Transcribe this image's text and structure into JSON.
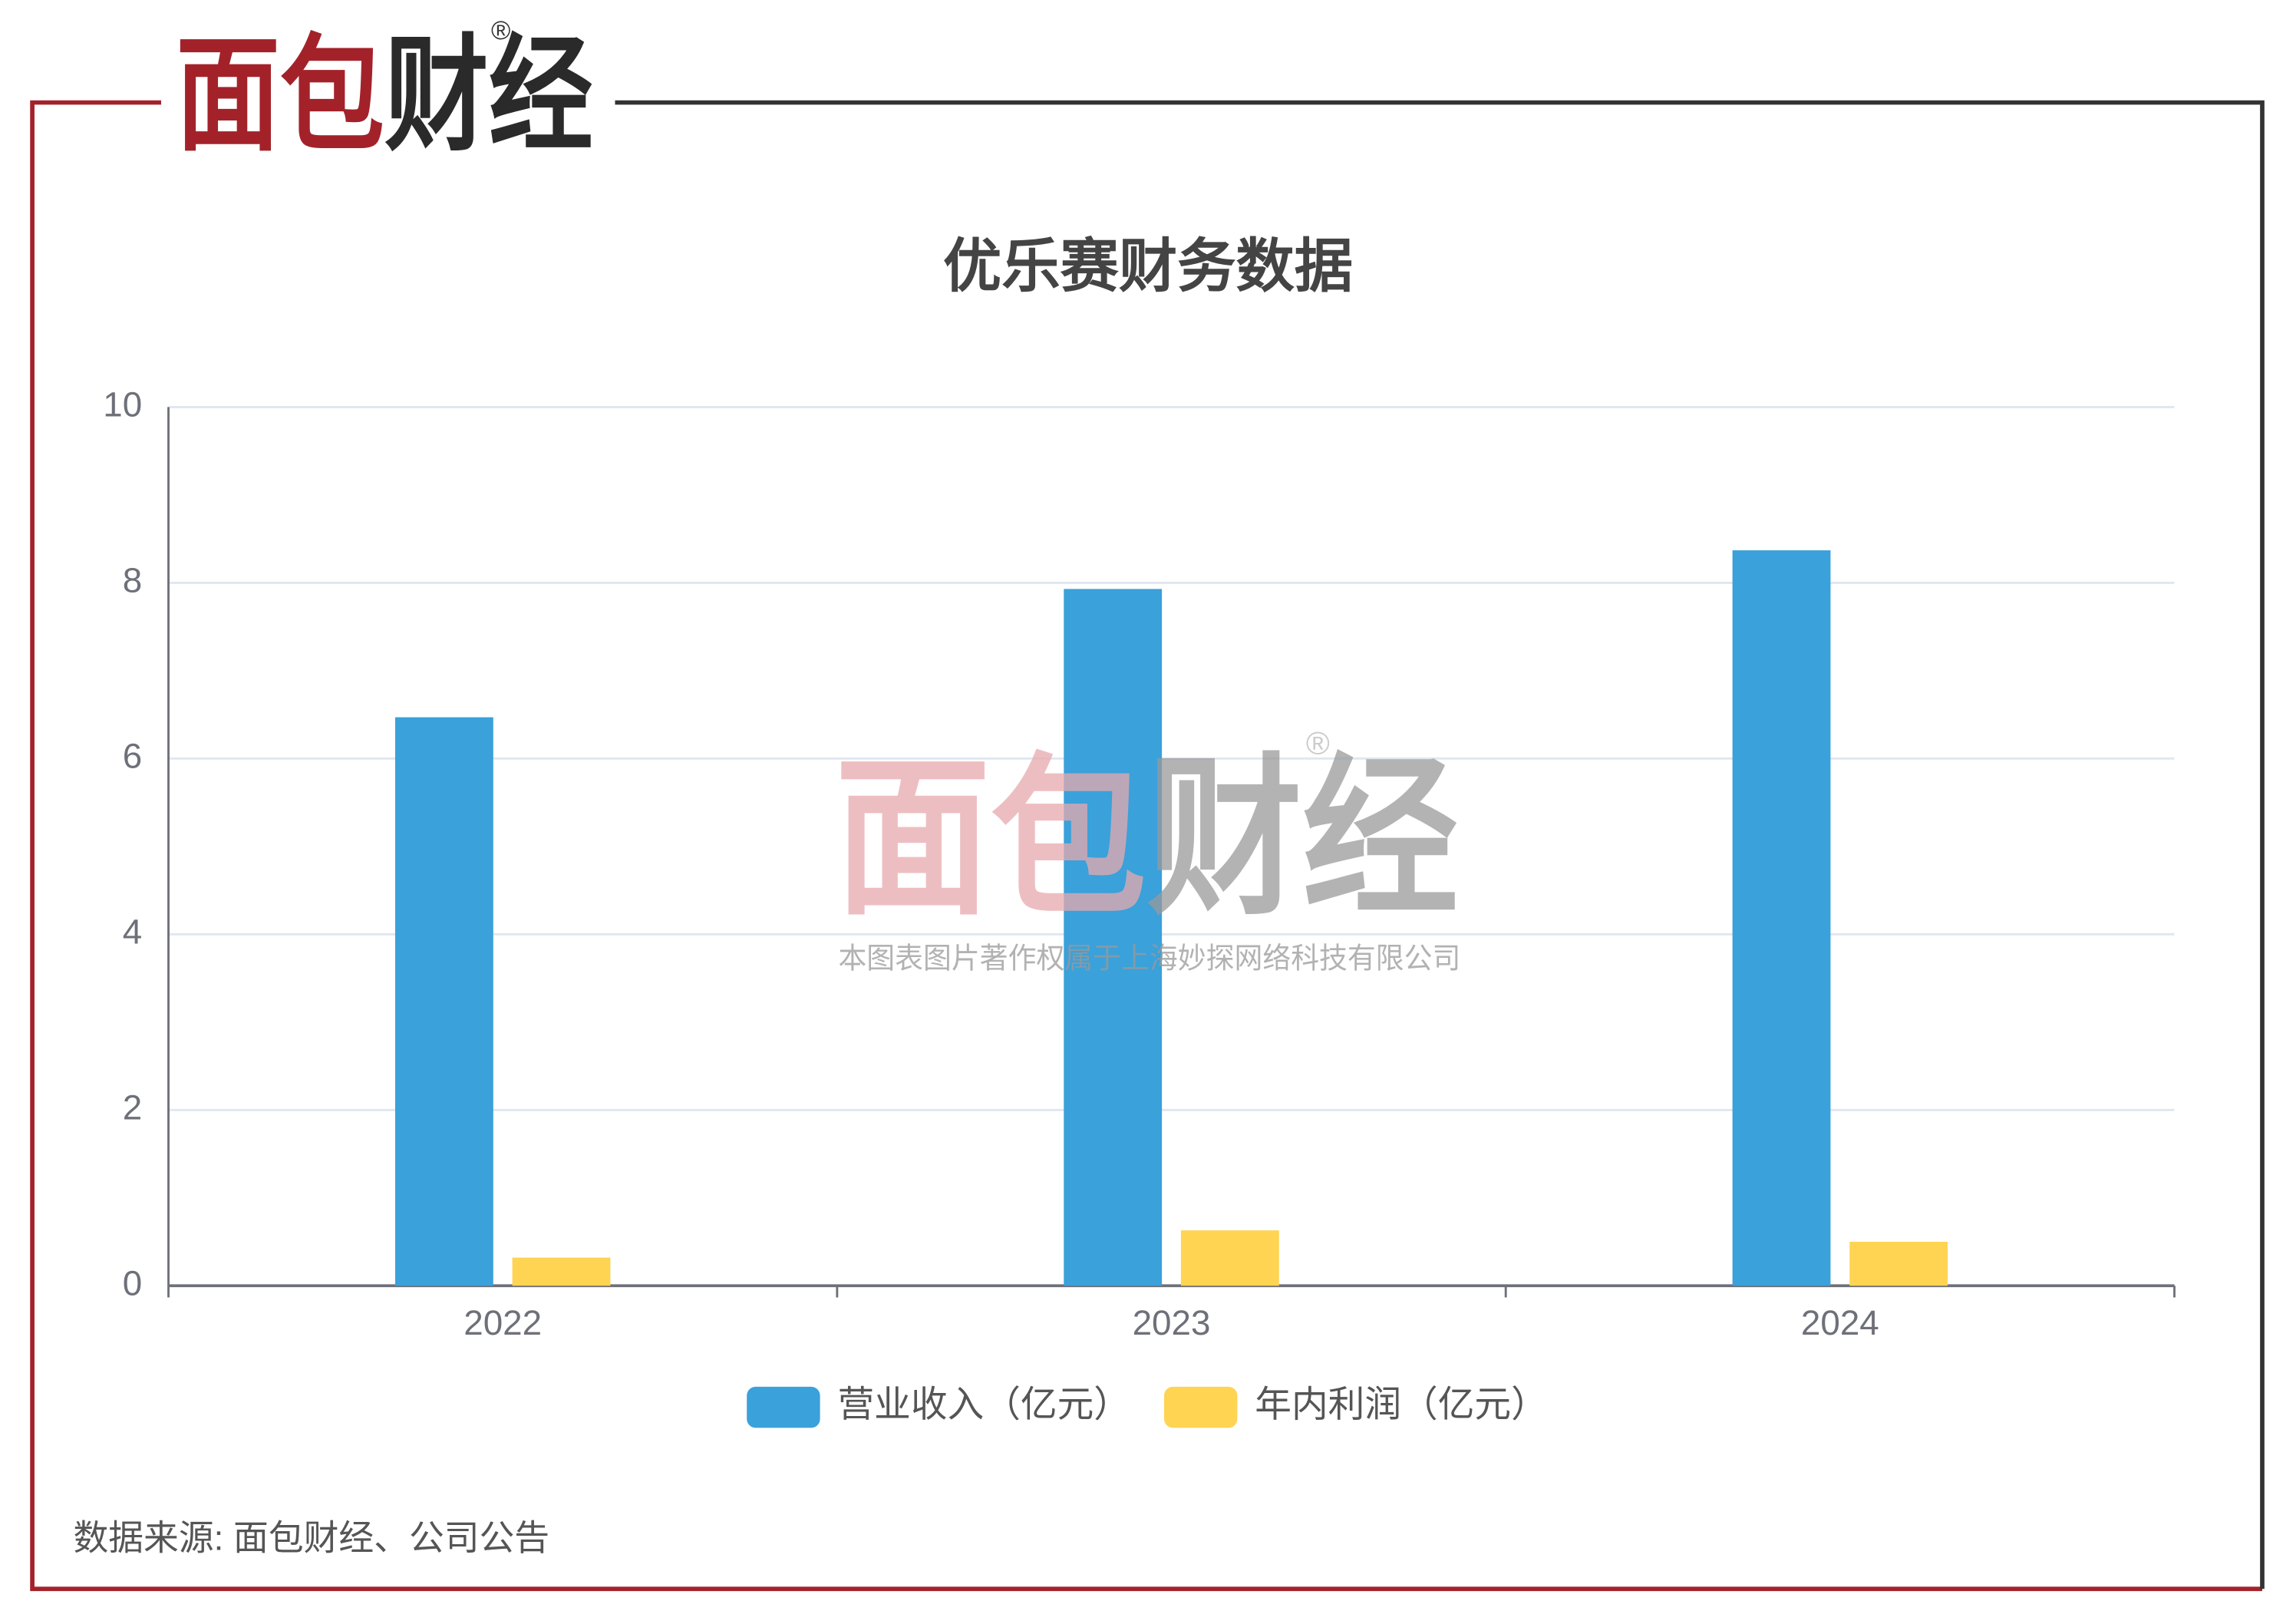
{
  "brand": {
    "name": "面包财经",
    "mark": "®"
  },
  "watermark": {
    "name": "面包财经",
    "mark": "®",
    "text": "本图表图片著作权属于上海妙探网络科技有限公司"
  },
  "source": "数据来源: 面包财经、公司公告",
  "chart_data": {
    "type": "bar",
    "title": "优乐赛财务数据",
    "categories": [
      "2022",
      "2023",
      "2024"
    ],
    "series": [
      {
        "name": "营业收入（亿元）",
        "color": "#3aa1da",
        "values": [
          6.47,
          7.93,
          8.37
        ]
      },
      {
        "name": "年内利润（亿元）",
        "color": "#fed452",
        "values": [
          0.32,
          0.63,
          0.5
        ]
      }
    ],
    "ylim": [
      0,
      10
    ],
    "yticks": [
      0,
      2,
      4,
      6,
      8,
      10
    ],
    "grid": true,
    "legend": "bottom"
  }
}
